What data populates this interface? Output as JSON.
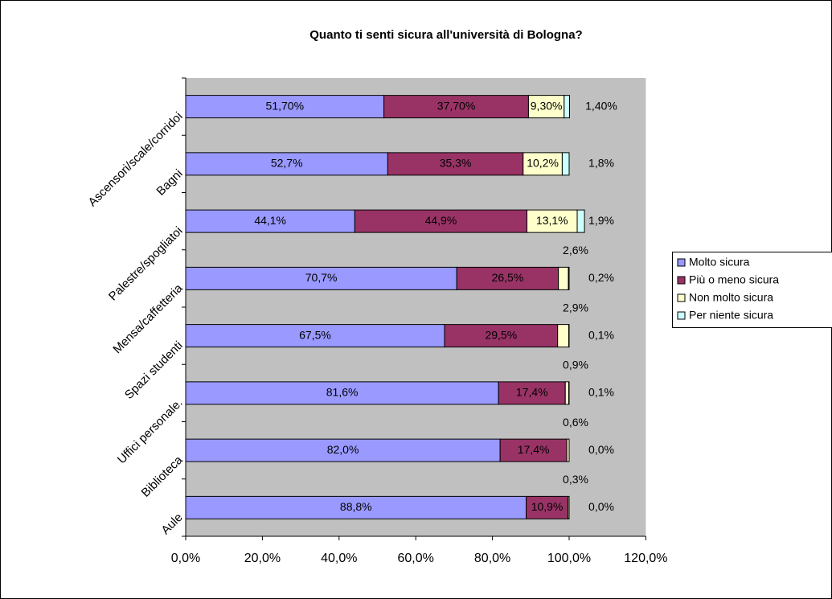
{
  "chart_data": {
    "type": "stacked-bar-horizontal",
    "title": "Quanto ti senti sicura all'università di Bologna?",
    "categories": [
      "Ascensori/scale/corridoi",
      "Bagni",
      "Palestre/spogliatoi",
      "Mensa/caffetteria",
      "Spazi studenti",
      "Uffici personale.",
      "Biblioteca",
      "Aule"
    ],
    "series": [
      {
        "name": "Molto sicura",
        "color": "#9999ff",
        "values": [
          51.7,
          52.7,
          44.1,
          70.7,
          67.5,
          81.6,
          82.0,
          88.8
        ],
        "value_labels": [
          "51,70%",
          "52,7%",
          "44,1%",
          "70,7%",
          "67,5%",
          "81,6%",
          "82,0%",
          "88,8%"
        ]
      },
      {
        "name": "Più o meno sicura",
        "color": "#993366",
        "values": [
          37.7,
          35.3,
          44.9,
          26.5,
          29.5,
          17.4,
          17.4,
          10.9
        ],
        "value_labels": [
          "37,70%",
          "35,3%",
          "44,9%",
          "26,5%",
          "29,5%",
          "17,4%",
          "17,4%",
          "10,9%"
        ]
      },
      {
        "name": "Non molto sicura",
        "color": "#ffffcc",
        "values": [
          9.3,
          10.2,
          13.1,
          2.6,
          2.9,
          0.9,
          0.6,
          0.3
        ],
        "value_labels": [
          "9,30%",
          "10,2%",
          "13,1%",
          "2,6%",
          "2,9%",
          "0,9%",
          "0,6%",
          "0,3%"
        ]
      },
      {
        "name": "Per niente sicura",
        "color": "#ccffff",
        "values": [
          1.4,
          1.8,
          1.9,
          0.2,
          0.1,
          0.1,
          0.0,
          0.0
        ],
        "value_labels": [
          "1,40%",
          "1,8%",
          "1,9%",
          "0,2%",
          "0,1%",
          "0,1%",
          "0,0%",
          "0,0%"
        ]
      }
    ],
    "xlim": [
      0,
      120
    ],
    "xticks": [
      {
        "value": 0,
        "label": "0,0%"
      },
      {
        "value": 20,
        "label": "20,0%"
      },
      {
        "value": 40,
        "label": "40,0%"
      },
      {
        "value": 60,
        "label": "60,0%"
      },
      {
        "value": 80,
        "label": "80,0%"
      },
      {
        "value": 100,
        "label": "100,0%"
      },
      {
        "value": 120,
        "label": "120,0%"
      }
    ],
    "legend": "right"
  }
}
